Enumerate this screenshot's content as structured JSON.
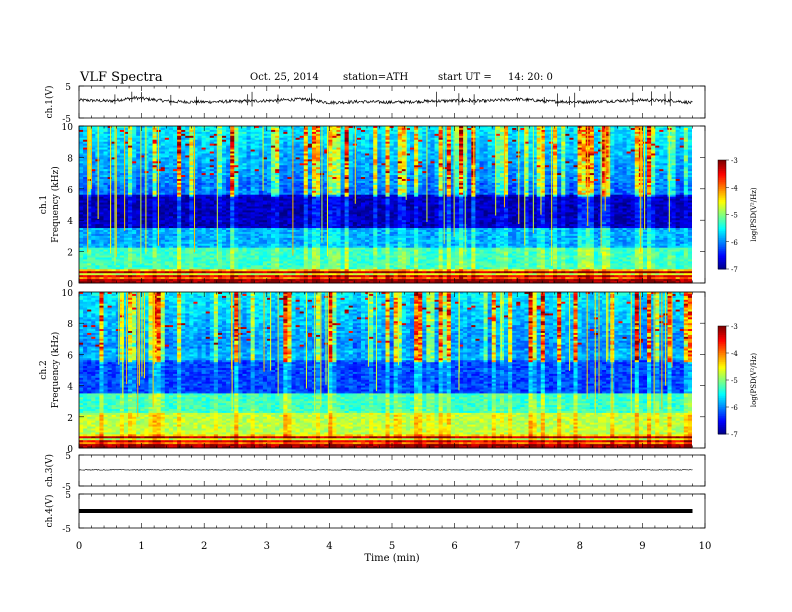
{
  "header": {
    "title": "VLF  Spectra",
    "date": "Oct. 25, 2014",
    "station": "station=ATH",
    "start_label": "start  UT  =",
    "start_time": "14: 20: 0"
  },
  "chart_data": [
    {
      "type": "line",
      "name": "ch1-waveform",
      "ylabel": "ch.1(V)",
      "ylim": [
        -5,
        5
      ],
      "yticks": [
        "5",
        "-5"
      ],
      "description_values": {
        "baseline": 0,
        "noise_amplitude": 0.8
      },
      "x": [
        0,
        0.5,
        0.9,
        1.5,
        2.0,
        3.0,
        3.6,
        4.0,
        4.5,
        5.0,
        5.5,
        6.0,
        6.5,
        7.0,
        7.5,
        8.0,
        8.5,
        9.0,
        9.5,
        9.8
      ],
      "values": [
        0.6,
        0.3,
        1.3,
        0.1,
        0.0,
        0.4,
        0.9,
        -0.2,
        0.1,
        -0.1,
        0.2,
        0.4,
        0.3,
        0.9,
        0.2,
        0.0,
        0.3,
        0.6,
        0.4,
        -0.3
      ]
    },
    {
      "type": "heatmap",
      "name": "ch1-spectrogram",
      "ylabel_top": "ch.1",
      "ylabel": "Frequency  (kHz)",
      "ylim": [
        0,
        10
      ],
      "yticks": [
        "0",
        "2",
        "4",
        "6",
        "8",
        "10"
      ],
      "colorbar_label": "log(PSD(V²/Hz)",
      "colorbar_range": [
        -7,
        -3
      ],
      "colorbar_ticks": [
        "-3",
        "-4",
        "-5",
        "-6",
        "-7"
      ]
    },
    {
      "type": "heatmap",
      "name": "ch2-spectrogram",
      "ylabel_top": "ch.2",
      "ylabel": "Frequency  (kHz)",
      "ylim": [
        0,
        10
      ],
      "yticks": [
        "0",
        "2",
        "4",
        "6",
        "8",
        "10"
      ],
      "colorbar_label": "log(PSD(V²/Hz)",
      "colorbar_range": [
        -7,
        -3
      ],
      "colorbar_ticks": [
        "-3",
        "-4",
        "-5",
        "-6",
        "-7"
      ]
    },
    {
      "type": "line",
      "name": "ch3-waveform",
      "ylabel": "ch.3(V)",
      "ylim": [
        -5,
        5
      ],
      "yticks": [
        "5",
        "-5"
      ],
      "x": [
        0,
        9.8
      ],
      "values": [
        0.2,
        0.2
      ]
    },
    {
      "type": "line",
      "name": "ch4-waveform",
      "ylabel": "ch.4(V)",
      "ylim": [
        -5,
        5
      ],
      "yticks": [
        "5",
        "-5"
      ],
      "x": [
        0,
        9.8
      ],
      "values": [
        0.0,
        0.0
      ]
    }
  ],
  "xaxis": {
    "label": "Time  (min)",
    "range": [
      0,
      10
    ],
    "ticks": [
      "0",
      "1",
      "2",
      "3",
      "4",
      "5",
      "6",
      "7",
      "8",
      "9",
      "10"
    ]
  }
}
